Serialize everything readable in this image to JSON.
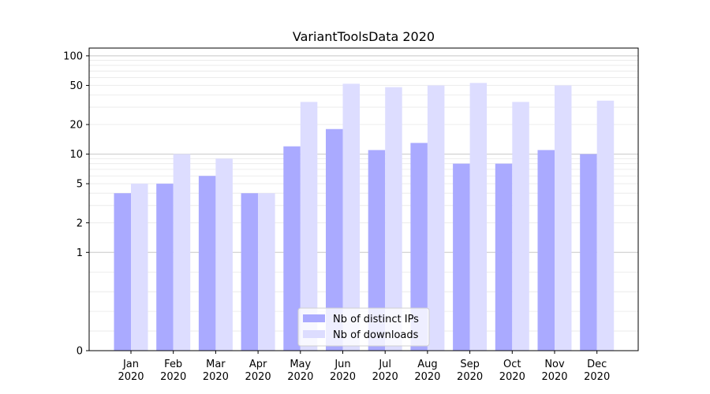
{
  "chart_data": {
    "type": "bar",
    "title": "VariantToolsData 2020",
    "xlabel": "",
    "ylabel": "",
    "yscale": "symlog",
    "ylim": [
      0,
      120
    ],
    "y_ticks": [
      0,
      1,
      2,
      5,
      10,
      20,
      50,
      100
    ],
    "grid": true,
    "legend_position": "bottom-center",
    "categories": [
      {
        "month": "Jan",
        "year": "2020"
      },
      {
        "month": "Feb",
        "year": "2020"
      },
      {
        "month": "Mar",
        "year": "2020"
      },
      {
        "month": "Apr",
        "year": "2020"
      },
      {
        "month": "May",
        "year": "2020"
      },
      {
        "month": "Jun",
        "year": "2020"
      },
      {
        "month": "Jul",
        "year": "2020"
      },
      {
        "month": "Aug",
        "year": "2020"
      },
      {
        "month": "Sep",
        "year": "2020"
      },
      {
        "month": "Oct",
        "year": "2020"
      },
      {
        "month": "Nov",
        "year": "2020"
      },
      {
        "month": "Dec",
        "year": "2020"
      }
    ],
    "series": [
      {
        "name": "Nb of distinct IPs",
        "color": "#aaaaff",
        "values": [
          4,
          5,
          6,
          4,
          12,
          18,
          11,
          13,
          8,
          8,
          11,
          10
        ]
      },
      {
        "name": "Nb of downloads",
        "color": "#ddddff",
        "values": [
          5,
          10,
          9,
          4,
          34,
          52,
          48,
          50,
          53,
          34,
          50,
          35
        ]
      }
    ]
  }
}
